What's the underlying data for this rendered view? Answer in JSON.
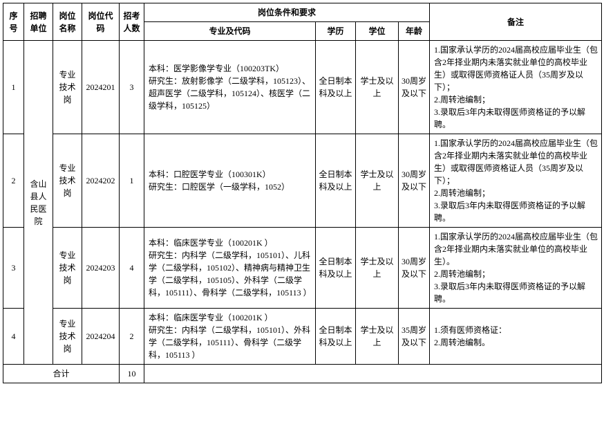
{
  "headers": {
    "seq": "序号",
    "unit": "招聘单位",
    "posname": "岗位名称",
    "poscode": "岗位代码",
    "count": "招考人数",
    "conditions": "岗位条件和要求",
    "major": "专业及代码",
    "edu": "学历",
    "degree": "学位",
    "age": "年龄",
    "remark": "备注"
  },
  "unit": "含山县人民医院",
  "rows": [
    {
      "seq": "1",
      "posname": "专业技术岗",
      "poscode": "2024201",
      "count": "3",
      "major": "本科：医学影像学专业（100203TK）\n研究生：放射影像学（二级学科，105123）、超声医学（二级学科，105124）、核医学（二级学科，105125）",
      "edu": "全日制本科及以上",
      "degree": "学士及以上",
      "age": "30周岁及以下",
      "remark": "1.国家承认学历的2024届高校应届毕业生（包含2年择业期内未落实就业单位的高校毕业生）或取得医师资格证人员（35周岁及以下）；\n2.周转池编制；\n3.录取后3年内未取得医师资格证的予以解聘。"
    },
    {
      "seq": "2",
      "posname": "专业技术岗",
      "poscode": "2024202",
      "count": "1",
      "major": "本科：口腔医学专业（100301K）\n研究生：口腔医学（一级学科，1052）",
      "edu": "全日制本科及以上",
      "degree": "学士及以上",
      "age": "30周岁及以下",
      "remark": "1.国家承认学历的2024届高校应届毕业生（包含2年择业期内未落实就业单位的高校毕业生）或取得医师资格证人员（35周岁及以下）；\n2.周转池编制；\n3.录取后3年内未取得医师资格证的予以解聘。"
    },
    {
      "seq": "3",
      "posname": "专业技术岗",
      "poscode": "2024203",
      "count": "4",
      "major": "本科：临床医学专业（100201K ）\n研究生：内科学（二级学科，105101）、儿科学（二级学科，105102）、精神病与精神卫生学（二级学科，105105）、外科学（二级学科，105111）、骨科学（二级学科，105113 ）",
      "edu": "全日制本科及以上",
      "degree": "学士及以上",
      "age": "30周岁及以下",
      "remark": "1.国家承认学历的2024届高校应届毕业生（包含2年择业期内未落实就业单位的高校毕业生）。\n2.周转池编制；\n3.录取后3年内未取得医师资格证的予以解聘。"
    },
    {
      "seq": "4",
      "posname": "专业技术岗",
      "poscode": "2024204",
      "count": "2",
      "major": "本科：临床医学专业（100201K ）\n研究生：内科学（二级学科，105101）、外科学（二级学科，105111）、骨科学（二级学科，105113 ）",
      "edu": "全日制本科及以上",
      "degree": "学士及以上",
      "age": "35周岁及以下",
      "remark": "1.须有医师资格证：\n2.周转池编制。"
    }
  ],
  "footer": {
    "total_label": "合计",
    "total_count": "10"
  }
}
